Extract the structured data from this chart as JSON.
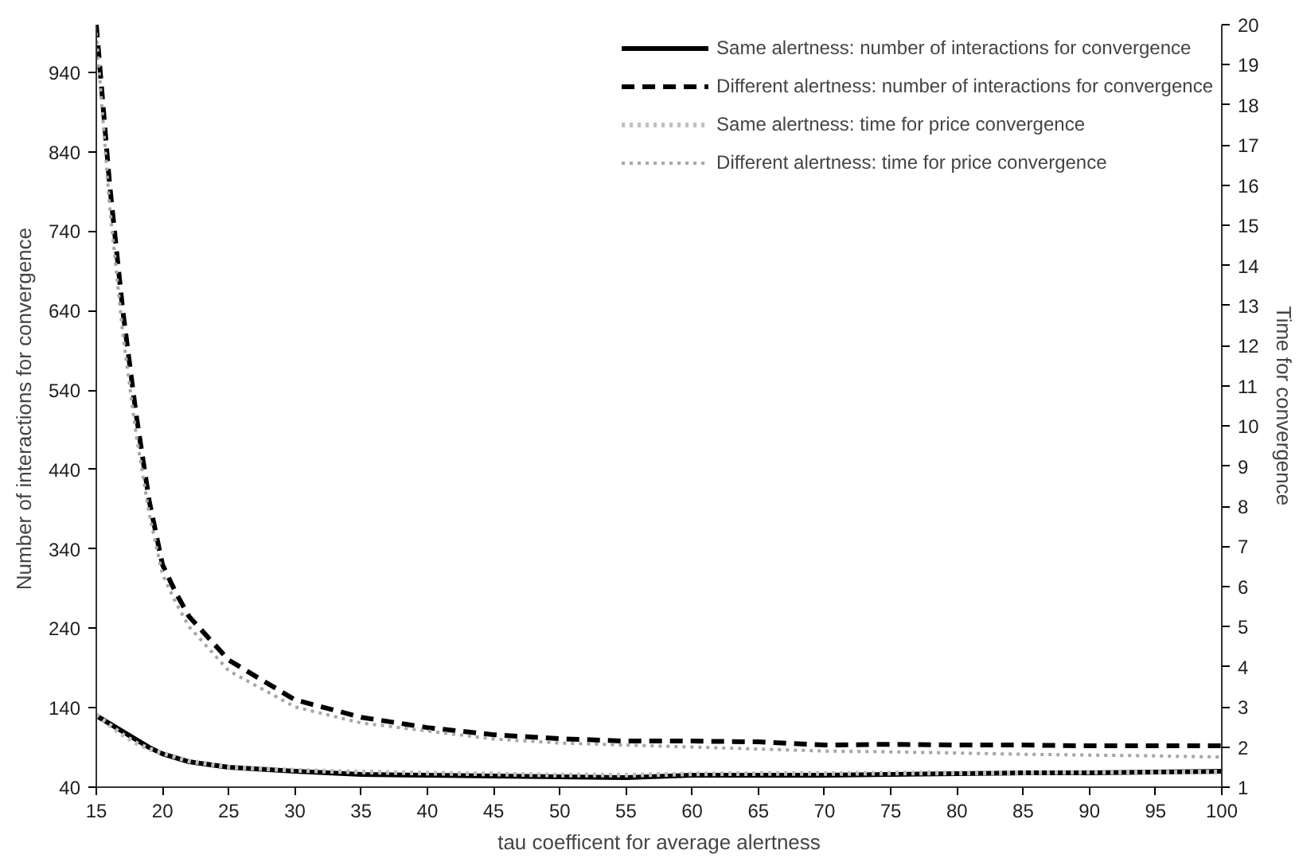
{
  "chart_data": {
    "type": "line",
    "xlabel": "tau coefficent for average alertness",
    "ylabel": "Number  of interactions for convergence",
    "y2label": "Time for convergence",
    "x": [
      15,
      16,
      17,
      18,
      19,
      20,
      21,
      22,
      25,
      30,
      35,
      40,
      45,
      50,
      55,
      60,
      65,
      70,
      75,
      80,
      85,
      90,
      95,
      100
    ],
    "series": [
      {
        "name": "Same alertness: number of interactions for convergence",
        "color": "#000000",
        "line_style": "solid",
        "values": [
          130,
          120,
          110,
          100,
          90,
          82,
          77,
          72,
          65,
          60,
          56,
          55,
          54,
          53,
          52,
          55,
          55,
          55,
          56,
          57,
          58,
          58,
          59,
          60
        ]
      },
      {
        "name": "Different alertness: number of interactions for convergence",
        "color": "#000000",
        "line_style": "dashed",
        "values": [
          1000,
          800,
          640,
          510,
          400,
          320,
          285,
          255,
          200,
          150,
          128,
          115,
          106,
          101,
          98,
          98,
          97,
          93,
          94,
          93,
          93,
          92,
          92,
          92
        ]
      },
      {
        "name": "Same alertness: time for price convergence",
        "color": "#bfbfbf",
        "line_style": "dotted",
        "axis": "y2",
        "values": [
          2.8,
          2.55,
          2.3,
          2.1,
          1.95,
          1.85,
          1.75,
          1.65,
          1.5,
          1.42,
          1.38,
          1.35,
          1.33,
          1.3,
          1.3,
          1.33,
          1.34,
          1.34,
          1.35,
          1.35,
          1.36,
          1.37,
          1.37,
          1.38
        ]
      },
      {
        "name": "Different alertness: time for price convergence",
        "color": "#a6a6a6",
        "line_style": "dotted",
        "axis": "y2",
        "values": [
          19.8,
          15.5,
          12.3,
          9.8,
          7.8,
          6.3,
          5.6,
          5.0,
          3.9,
          3.0,
          2.6,
          2.4,
          2.2,
          2.1,
          2.05,
          2.0,
          1.95,
          1.9,
          1.88,
          1.85,
          1.82,
          1.8,
          1.78,
          1.75
        ]
      }
    ],
    "xlim": [
      15,
      100
    ],
    "xticks": [
      15,
      20,
      25,
      30,
      35,
      40,
      45,
      50,
      55,
      60,
      65,
      70,
      75,
      80,
      85,
      90,
      95,
      100
    ],
    "ylim": [
      40,
      1000
    ],
    "yticks": [
      40,
      140,
      240,
      340,
      440,
      540,
      640,
      740,
      840,
      940
    ],
    "y2lim": [
      1,
      20
    ],
    "y2ticks": [
      1,
      2,
      3,
      4,
      5,
      6,
      7,
      8,
      9,
      10,
      11,
      12,
      13,
      14,
      15,
      16,
      17,
      18,
      19,
      20
    ],
    "grid": false,
    "legend": "top right"
  }
}
